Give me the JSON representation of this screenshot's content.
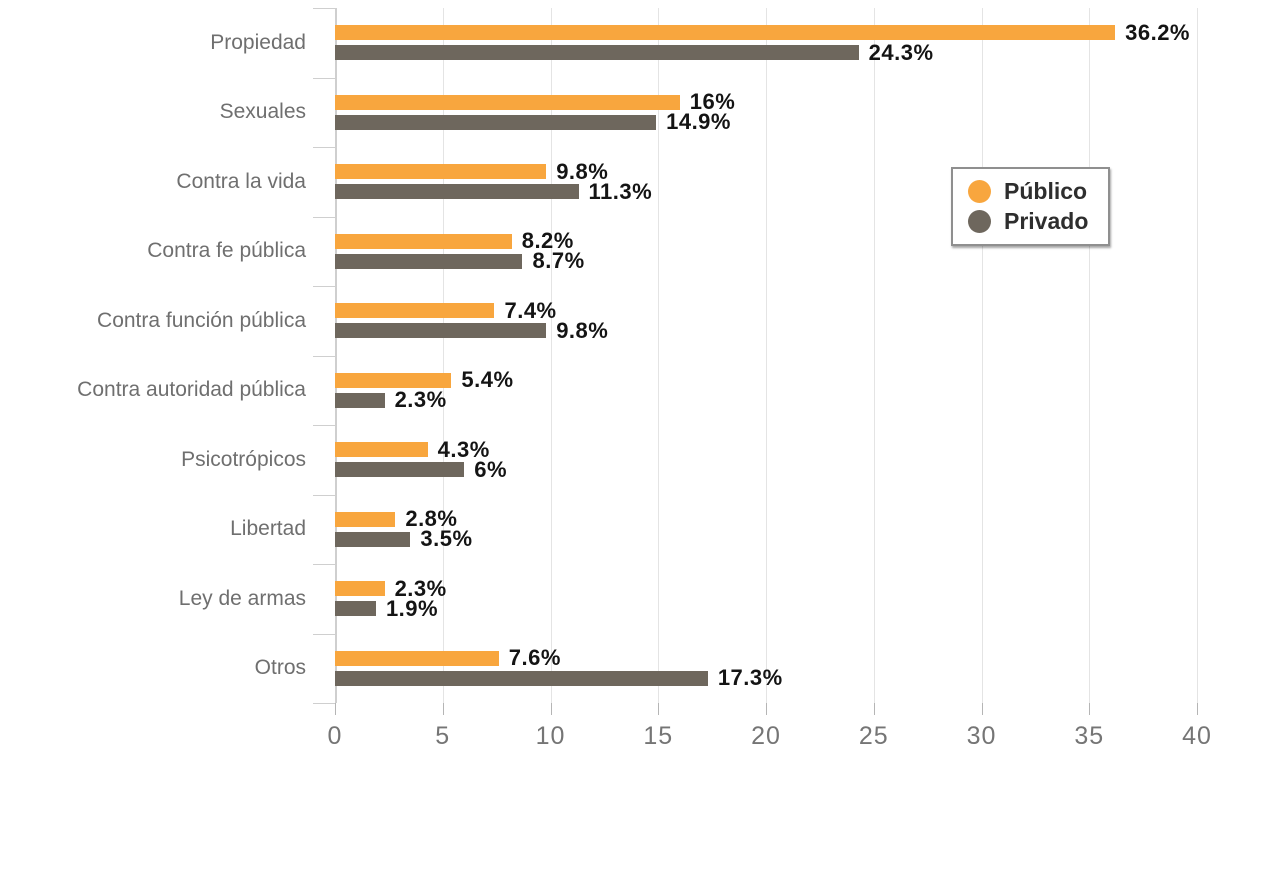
{
  "chart_data": {
    "type": "bar",
    "orientation": "horizontal",
    "title": "",
    "xlabel": "",
    "ylabel": "",
    "categories": [
      "Propiedad",
      "Sexuales",
      "Contra la vida",
      "Contra fe pública",
      "Contra función pública",
      "Contra autoridad pública",
      "Psicotrópicos",
      "Libertad",
      "Ley de armas",
      "Otros"
    ],
    "series": [
      {
        "name": "Público",
        "color": "#F8A63E",
        "values": [
          36.2,
          16,
          9.8,
          8.2,
          7.4,
          5.4,
          4.3,
          2.8,
          2.3,
          7.6
        ],
        "labels": [
          "36.2%",
          "16%",
          "9.8%",
          "8.2%",
          "7.4%",
          "5.4%",
          "4.3%",
          "2.8%",
          "2.3%",
          "7.6%"
        ]
      },
      {
        "name": "Privado",
        "color": "#6E675D",
        "values": [
          24.3,
          14.9,
          11.3,
          8.7,
          9.8,
          2.3,
          6,
          3.5,
          1.9,
          17.3
        ],
        "labels": [
          "24.3%",
          "14.9%",
          "11.3%",
          "8.7%",
          "9.8%",
          "2.3%",
          "6%",
          "3.5%",
          "1.9%",
          "17.3%"
        ]
      }
    ],
    "xlim": [
      0,
      40
    ],
    "xticks": [
      0,
      5,
      10,
      15,
      20,
      25,
      30,
      35,
      40
    ],
    "xtick_labels": [
      "0",
      "5",
      "10",
      "15",
      "20",
      "25",
      "30",
      "35",
      "40"
    ],
    "grid": true,
    "legend_position": "inside-upper-right"
  },
  "colors": {
    "background": "#ffffff",
    "value_label": "#141414",
    "category_label": "#6f6f6f",
    "axis_label": "#757575",
    "gridline": "#e4e4e4",
    "axis_line": "#cfcfcf"
  }
}
